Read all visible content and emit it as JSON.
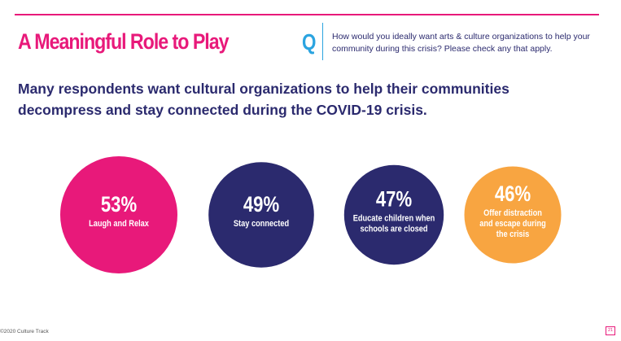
{
  "slide": {
    "title": "A Meaningful Role to Play",
    "q_mark": "Q",
    "question": "How would you ideally want arts & culture organizations to help your community during this crisis? Please check any that apply.",
    "subtitle": "Many respondents want cultural organizations to help their communities decompress and stay connected during the COVID-19 crisis.",
    "footer": "©2020 Culture Track",
    "page_number": "21"
  },
  "colors": {
    "accent_pink": "#e8197a",
    "navy": "#2b2a6e",
    "orange": "#f8a541",
    "blue": "#2ba4e0"
  },
  "chart_data": {
    "type": "bubble",
    "title": "",
    "unit": "%",
    "items": [
      {
        "label": "Laugh and Relax",
        "label_lines": [
          "Laugh and Relax"
        ],
        "value": 53,
        "display": "53%",
        "color": "#e8197a"
      },
      {
        "label": "Stay connected",
        "label_lines": [
          "Stay connected"
        ],
        "value": 49,
        "display": "49%",
        "color": "#2b2a6e"
      },
      {
        "label": "Educate children when schools are closed",
        "label_lines": [
          "Educate children when",
          "schools are closed"
        ],
        "value": 47,
        "display": "47%",
        "color": "#2b2a6e"
      },
      {
        "label": "Offer distraction and escape during the crisis",
        "label_lines": [
          "Offer distraction",
          "and escape during",
          "the crisis"
        ],
        "value": 46,
        "display": "46%",
        "color": "#f8a541"
      }
    ]
  }
}
